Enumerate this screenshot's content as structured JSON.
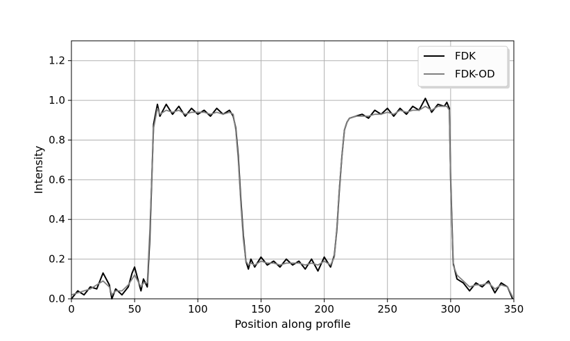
{
  "chart_data": {
    "type": "line",
    "xlabel": "Position along profile",
    "ylabel": "Intensity",
    "xlim": [
      0,
      350
    ],
    "ylim": [
      0.0,
      1.3
    ],
    "xticks": [
      0,
      50,
      100,
      150,
      200,
      250,
      300,
      350
    ],
    "xtick_labels": [
      "0",
      "50",
      "100",
      "150",
      "200",
      "250",
      "300",
      "350"
    ],
    "yticks": [
      0.0,
      0.2,
      0.4,
      0.6,
      0.8,
      1.0,
      1.2
    ],
    "ytick_labels": [
      "0.0",
      "0.2",
      "0.4",
      "0.6",
      "0.8",
      "1.0",
      "1.2"
    ],
    "grid": true,
    "legend_position": "top-right",
    "series": [
      {
        "name": "FDK",
        "color": "#000000",
        "x": [
          0,
          5,
          10,
          15,
          20,
          25,
          30,
          32,
          35,
          40,
          45,
          48,
          50,
          55,
          57,
          60,
          62,
          65,
          68,
          70,
          75,
          80,
          85,
          90,
          95,
          100,
          105,
          110,
          115,
          120,
          125,
          128,
          130,
          132,
          134,
          136,
          138,
          140,
          142,
          145,
          150,
          155,
          160,
          165,
          170,
          175,
          180,
          185,
          190,
          195,
          200,
          205,
          208,
          210,
          212,
          214,
          216,
          218,
          220,
          225,
          230,
          235,
          240,
          245,
          250,
          255,
          260,
          265,
          270,
          275,
          280,
          285,
          290,
          295,
          297,
          299,
          300,
          302,
          305,
          310,
          315,
          320,
          325,
          330,
          335,
          340,
          345,
          349
        ],
        "y": [
          0.0,
          0.04,
          0.02,
          0.06,
          0.05,
          0.13,
          0.07,
          0.0,
          0.05,
          0.02,
          0.06,
          0.13,
          0.16,
          0.04,
          0.1,
          0.06,
          0.3,
          0.88,
          0.98,
          0.92,
          0.98,
          0.93,
          0.97,
          0.92,
          0.96,
          0.93,
          0.95,
          0.92,
          0.96,
          0.93,
          0.95,
          0.92,
          0.86,
          0.72,
          0.5,
          0.32,
          0.19,
          0.15,
          0.2,
          0.16,
          0.21,
          0.17,
          0.19,
          0.16,
          0.2,
          0.17,
          0.19,
          0.15,
          0.2,
          0.14,
          0.21,
          0.16,
          0.22,
          0.35,
          0.55,
          0.72,
          0.85,
          0.89,
          0.91,
          0.92,
          0.93,
          0.91,
          0.95,
          0.93,
          0.96,
          0.92,
          0.96,
          0.93,
          0.97,
          0.95,
          1.01,
          0.94,
          0.98,
          0.97,
          0.99,
          0.96,
          0.6,
          0.18,
          0.1,
          0.08,
          0.04,
          0.08,
          0.06,
          0.09,
          0.03,
          0.08,
          0.06,
          0.0
        ]
      },
      {
        "name": "FDK-OD",
        "color": "#7f7f7f",
        "x": [
          0,
          5,
          10,
          15,
          20,
          25,
          30,
          32,
          35,
          40,
          45,
          48,
          50,
          55,
          57,
          60,
          62,
          65,
          68,
          70,
          75,
          80,
          85,
          90,
          95,
          100,
          105,
          110,
          115,
          120,
          125,
          128,
          130,
          132,
          134,
          136,
          138,
          140,
          142,
          145,
          150,
          155,
          160,
          165,
          170,
          175,
          180,
          185,
          190,
          195,
          200,
          205,
          208,
          210,
          212,
          214,
          216,
          218,
          220,
          225,
          230,
          235,
          240,
          245,
          250,
          255,
          260,
          265,
          270,
          275,
          280,
          285,
          290,
          295,
          297,
          299,
          300,
          302,
          305,
          310,
          315,
          320,
          325,
          330,
          335,
          340,
          345,
          349
        ],
        "y": [
          0.02,
          0.03,
          0.04,
          0.05,
          0.07,
          0.09,
          0.06,
          0.02,
          0.04,
          0.04,
          0.07,
          0.1,
          0.12,
          0.06,
          0.08,
          0.08,
          0.34,
          0.86,
          0.96,
          0.93,
          0.95,
          0.94,
          0.95,
          0.93,
          0.94,
          0.94,
          0.94,
          0.93,
          0.94,
          0.93,
          0.94,
          0.93,
          0.85,
          0.7,
          0.48,
          0.3,
          0.19,
          0.17,
          0.18,
          0.17,
          0.19,
          0.18,
          0.18,
          0.17,
          0.18,
          0.18,
          0.18,
          0.17,
          0.18,
          0.17,
          0.19,
          0.17,
          0.21,
          0.36,
          0.56,
          0.72,
          0.85,
          0.89,
          0.91,
          0.92,
          0.92,
          0.92,
          0.93,
          0.93,
          0.94,
          0.93,
          0.95,
          0.94,
          0.95,
          0.95,
          0.97,
          0.95,
          0.97,
          0.97,
          0.97,
          0.95,
          0.58,
          0.17,
          0.12,
          0.09,
          0.06,
          0.07,
          0.07,
          0.08,
          0.05,
          0.07,
          0.06,
          0.01
        ]
      }
    ]
  }
}
